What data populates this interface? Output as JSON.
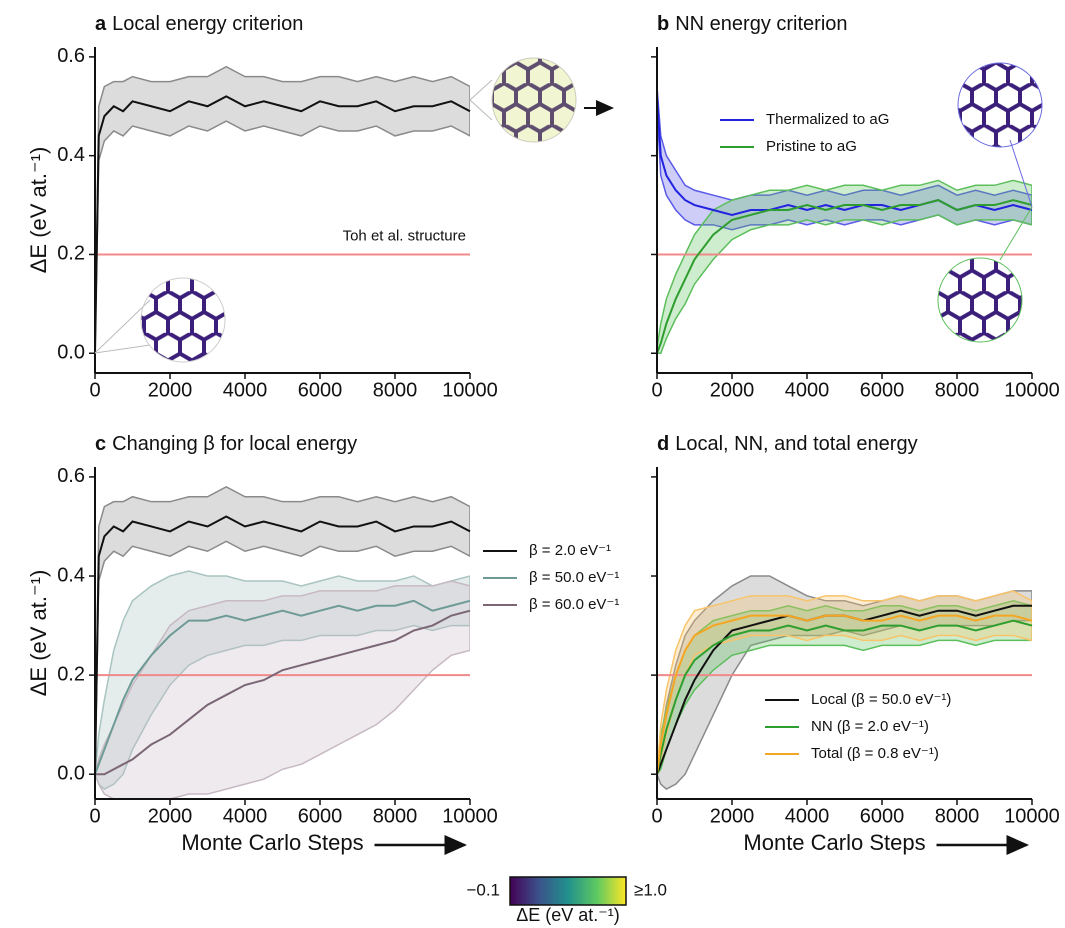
{
  "chart_data": [
    {
      "type": "line",
      "panel_label": "a",
      "title": "Local energy criterion",
      "y_label": "ΔE (eV at.⁻¹)",
      "x": [
        0,
        100,
        250,
        500,
        750,
        1000,
        1500,
        2000,
        2500,
        3000,
        3500,
        4000,
        4500,
        5000,
        5500,
        6000,
        6500,
        7000,
        7500,
        8000,
        8500,
        9000,
        9500,
        10000
      ],
      "series": [
        {
          "color": "#111111",
          "band_color": "#8a8a8a",
          "values": [
            0,
            0.44,
            0.48,
            0.5,
            0.49,
            0.51,
            0.5,
            0.49,
            0.51,
            0.5,
            0.52,
            0.5,
            0.51,
            0.5,
            0.49,
            0.51,
            0.5,
            0.5,
            0.51,
            0.49,
            0.5,
            0.5,
            0.51,
            0.49
          ],
          "lower": [
            0,
            0.39,
            0.43,
            0.45,
            0.44,
            0.46,
            0.45,
            0.44,
            0.46,
            0.45,
            0.47,
            0.45,
            0.46,
            0.45,
            0.44,
            0.46,
            0.45,
            0.45,
            0.46,
            0.44,
            0.45,
            0.45,
            0.46,
            0.44
          ],
          "upper": [
            0,
            0.5,
            0.54,
            0.55,
            0.55,
            0.56,
            0.55,
            0.55,
            0.56,
            0.56,
            0.58,
            0.56,
            0.56,
            0.55,
            0.55,
            0.56,
            0.56,
            0.55,
            0.56,
            0.55,
            0.56,
            0.55,
            0.56,
            0.54
          ]
        }
      ],
      "hline": {
        "value": 0.2,
        "color": "#f08a8a",
        "label": "Toh et al. structure"
      },
      "xlim": [
        0,
        10000
      ],
      "xticks": [
        0,
        2000,
        4000,
        6000,
        8000,
        10000
      ],
      "ylim": [
        -0.04,
        0.62
      ],
      "yticks": [
        {
          "value": 0,
          "label": "0.0"
        },
        0.2,
        0.4,
        0.6
      ],
      "ytick_labels": true
    },
    {
      "type": "line",
      "panel_label": "b",
      "title": "NN energy criterion",
      "legend": "upper center",
      "x": [
        0,
        100,
        250,
        500,
        750,
        1000,
        1500,
        2000,
        2500,
        3000,
        3500,
        4000,
        4500,
        5000,
        5500,
        6000,
        6500,
        7000,
        7500,
        8000,
        8500,
        9000,
        9500,
        10000
      ],
      "series": [
        {
          "name": "Thermalized to aG",
          "color": "#2323e0",
          "band_color": "#5a5ae8",
          "values": [
            0.52,
            0.4,
            0.36,
            0.33,
            0.31,
            0.3,
            0.29,
            0.28,
            0.29,
            0.29,
            0.3,
            0.29,
            0.3,
            0.29,
            0.3,
            0.3,
            0.29,
            0.3,
            0.31,
            0.29,
            0.3,
            0.29,
            0.3,
            0.29
          ],
          "lower": [
            0.5,
            0.36,
            0.32,
            0.29,
            0.27,
            0.26,
            0.26,
            0.25,
            0.26,
            0.26,
            0.27,
            0.26,
            0.27,
            0.26,
            0.27,
            0.27,
            0.26,
            0.27,
            0.28,
            0.26,
            0.27,
            0.26,
            0.27,
            0.26
          ],
          "upper": [
            0.54,
            0.44,
            0.4,
            0.37,
            0.34,
            0.33,
            0.32,
            0.31,
            0.32,
            0.32,
            0.33,
            0.32,
            0.33,
            0.32,
            0.33,
            0.33,
            0.32,
            0.33,
            0.34,
            0.32,
            0.33,
            0.32,
            0.33,
            0.32
          ]
        },
        {
          "name": "Pristine to aG",
          "color": "#2e9e2e",
          "band_color": "#5cbf5c",
          "values": [
            0,
            0.02,
            0.06,
            0.11,
            0.15,
            0.19,
            0.24,
            0.27,
            0.28,
            0.29,
            0.29,
            0.3,
            0.29,
            0.3,
            0.3,
            0.29,
            0.3,
            0.3,
            0.31,
            0.29,
            0.3,
            0.3,
            0.31,
            0.3
          ],
          "lower": [
            0,
            0,
            0.03,
            0.07,
            0.1,
            0.14,
            0.19,
            0.23,
            0.25,
            0.26,
            0.26,
            0.27,
            0.26,
            0.27,
            0.27,
            0.26,
            0.27,
            0.27,
            0.28,
            0.26,
            0.27,
            0.27,
            0.27,
            0.26
          ],
          "upper": [
            0.01,
            0.06,
            0.11,
            0.16,
            0.2,
            0.24,
            0.29,
            0.31,
            0.32,
            0.33,
            0.33,
            0.34,
            0.33,
            0.34,
            0.34,
            0.33,
            0.34,
            0.34,
            0.35,
            0.33,
            0.34,
            0.34,
            0.35,
            0.34
          ]
        }
      ],
      "hline": {
        "value": 0.2,
        "color": "#f08a8a"
      },
      "xlim": [
        0,
        10000
      ],
      "xticks": [
        0,
        2000,
        4000,
        6000,
        8000,
        10000
      ],
      "ylim": [
        -0.04,
        0.62
      ],
      "yticks": [
        0,
        0.2,
        0.4,
        0.6
      ],
      "ytick_labels": false
    },
    {
      "type": "line",
      "panel_label": "c",
      "title": "Changing β for local energy",
      "y_label": "ΔE (eV at.⁻¹)",
      "x_label": "Monte Carlo Steps",
      "legend": "right outside",
      "x": [
        0,
        100,
        250,
        500,
        750,
        1000,
        1500,
        2000,
        2500,
        3000,
        3500,
        4000,
        4500,
        5000,
        5500,
        6000,
        6500,
        7000,
        7500,
        8000,
        8500,
        9000,
        9500,
        10000
      ],
      "series": [
        {
          "name": "β = 2.0 eV⁻¹",
          "color": "#111111",
          "band_color": "#8a8a8a",
          "values": [
            0,
            0.44,
            0.48,
            0.5,
            0.49,
            0.51,
            0.5,
            0.49,
            0.51,
            0.5,
            0.52,
            0.5,
            0.51,
            0.5,
            0.49,
            0.51,
            0.5,
            0.5,
            0.51,
            0.49,
            0.5,
            0.5,
            0.51,
            0.49
          ],
          "lower": [
            0,
            0.39,
            0.43,
            0.45,
            0.44,
            0.46,
            0.45,
            0.44,
            0.46,
            0.45,
            0.47,
            0.45,
            0.46,
            0.45,
            0.44,
            0.46,
            0.45,
            0.45,
            0.46,
            0.44,
            0.45,
            0.45,
            0.46,
            0.44
          ],
          "upper": [
            0,
            0.5,
            0.54,
            0.55,
            0.55,
            0.56,
            0.55,
            0.55,
            0.56,
            0.56,
            0.58,
            0.56,
            0.56,
            0.55,
            0.55,
            0.56,
            0.56,
            0.55,
            0.56,
            0.55,
            0.56,
            0.55,
            0.56,
            0.54
          ]
        },
        {
          "name": "β = 50.0 eV⁻¹",
          "color": "#6e9b97",
          "band_color": "#a9c4c1",
          "values": [
            0,
            0.02,
            0.05,
            0.1,
            0.15,
            0.19,
            0.24,
            0.28,
            0.31,
            0.31,
            0.32,
            0.31,
            0.32,
            0.33,
            0.32,
            0.33,
            0.34,
            0.33,
            0.34,
            0.34,
            0.35,
            0.33,
            0.34,
            0.35
          ],
          "lower": [
            0,
            -0.02,
            -0.03,
            -0.02,
            0,
            0.05,
            0.12,
            0.18,
            0.22,
            0.24,
            0.25,
            0.26,
            0.26,
            0.27,
            0.27,
            0.28,
            0.28,
            0.28,
            0.29,
            0.29,
            0.3,
            0.29,
            0.3,
            0.3
          ],
          "upper": [
            0,
            0.08,
            0.15,
            0.25,
            0.31,
            0.35,
            0.38,
            0.4,
            0.41,
            0.4,
            0.4,
            0.39,
            0.39,
            0.39,
            0.38,
            0.39,
            0.4,
            0.39,
            0.39,
            0.39,
            0.4,
            0.38,
            0.39,
            0.4
          ]
        },
        {
          "name": "β = 60.0 eV⁻¹",
          "color": "#7b6676",
          "band_color": "#c7b9c3",
          "values": [
            0,
            0,
            0,
            0.01,
            0.02,
            0.03,
            0.06,
            0.08,
            0.11,
            0.14,
            0.16,
            0.18,
            0.19,
            0.21,
            0.22,
            0.23,
            0.24,
            0.25,
            0.26,
            0.27,
            0.29,
            0.3,
            0.32,
            0.33
          ],
          "lower": [
            0,
            -0.02,
            -0.04,
            -0.05,
            -0.05,
            -0.05,
            -0.05,
            -0.05,
            -0.04,
            -0.04,
            -0.03,
            -0.02,
            -0.01,
            0.01,
            0.02,
            0.04,
            0.06,
            0.08,
            0.1,
            0.13,
            0.17,
            0.21,
            0.24,
            0.25
          ],
          "upper": [
            0,
            0.03,
            0.06,
            0.1,
            0.14,
            0.18,
            0.24,
            0.3,
            0.33,
            0.34,
            0.35,
            0.35,
            0.35,
            0.36,
            0.36,
            0.37,
            0.37,
            0.37,
            0.37,
            0.38,
            0.38,
            0.38,
            0.39,
            0.38
          ]
        }
      ],
      "hline": {
        "value": 0.2,
        "color": "#f08a8a"
      },
      "xlim": [
        0,
        10000
      ],
      "xticks": [
        0,
        2000,
        4000,
        6000,
        8000,
        10000
      ],
      "ylim": [
        -0.05,
        0.62
      ],
      "yticks": [
        {
          "value": 0,
          "label": "0.0"
        },
        0.2,
        0.4,
        0.6
      ],
      "ytick_labels": true
    },
    {
      "type": "line",
      "panel_label": "d",
      "title": "Local, NN, and total energy",
      "x_label": "Monte Carlo Steps",
      "legend": "lower right",
      "x": [
        0,
        100,
        250,
        500,
        750,
        1000,
        1500,
        2000,
        2500,
        3000,
        3500,
        4000,
        4500,
        5000,
        5500,
        6000,
        6500,
        7000,
        7500,
        8000,
        8500,
        9000,
        9500,
        10000
      ],
      "series": [
        {
          "name": "Local (β = 50.0 eV⁻¹)",
          "color": "#111111",
          "band_color": "#8a8a8a",
          "values": [
            0,
            0.02,
            0.05,
            0.1,
            0.15,
            0.19,
            0.25,
            0.29,
            0.3,
            0.31,
            0.32,
            0.31,
            0.32,
            0.32,
            0.31,
            0.32,
            0.33,
            0.32,
            0.33,
            0.33,
            0.32,
            0.33,
            0.34,
            0.34
          ],
          "lower": [
            0,
            -0.02,
            -0.03,
            -0.02,
            0,
            0.04,
            0.12,
            0.2,
            0.26,
            0.27,
            0.28,
            0.28,
            0.28,
            0.29,
            0.28,
            0.29,
            0.3,
            0.29,
            0.3,
            0.3,
            0.3,
            0.3,
            0.31,
            0.31
          ],
          "upper": [
            0,
            0.07,
            0.14,
            0.22,
            0.28,
            0.31,
            0.35,
            0.38,
            0.4,
            0.4,
            0.38,
            0.36,
            0.35,
            0.35,
            0.34,
            0.35,
            0.36,
            0.35,
            0.36,
            0.36,
            0.35,
            0.36,
            0.37,
            0.37
          ]
        },
        {
          "name": "NN (β = 2.0 eV⁻¹)",
          "color": "#2e9e2e",
          "band_color": "#5cbf5c",
          "values": [
            0,
            0.04,
            0.09,
            0.15,
            0.2,
            0.23,
            0.26,
            0.28,
            0.29,
            0.29,
            0.3,
            0.29,
            0.3,
            0.29,
            0.29,
            0.3,
            0.3,
            0.29,
            0.3,
            0.3,
            0.29,
            0.3,
            0.31,
            0.3
          ],
          "lower": [
            0,
            0.01,
            0.05,
            0.1,
            0.14,
            0.17,
            0.21,
            0.24,
            0.25,
            0.26,
            0.26,
            0.26,
            0.26,
            0.26,
            0.25,
            0.26,
            0.26,
            0.26,
            0.27,
            0.27,
            0.26,
            0.27,
            0.27,
            0.27
          ],
          "upper": [
            0,
            0.08,
            0.13,
            0.2,
            0.25,
            0.28,
            0.31,
            0.32,
            0.33,
            0.33,
            0.34,
            0.33,
            0.34,
            0.33,
            0.33,
            0.34,
            0.34,
            0.33,
            0.34,
            0.34,
            0.33,
            0.34,
            0.35,
            0.34
          ]
        },
        {
          "name": "Total (β = 0.8 eV⁻¹)",
          "color": "#f5a623",
          "band_color": "#f8c46a",
          "values": [
            0,
            0.06,
            0.12,
            0.2,
            0.25,
            0.28,
            0.3,
            0.31,
            0.32,
            0.32,
            0.32,
            0.31,
            0.32,
            0.32,
            0.31,
            0.31,
            0.32,
            0.31,
            0.32,
            0.32,
            0.31,
            0.32,
            0.32,
            0.31
          ],
          "lower": [
            0,
            0.03,
            0.08,
            0.15,
            0.2,
            0.24,
            0.26,
            0.27,
            0.28,
            0.28,
            0.28,
            0.27,
            0.28,
            0.28,
            0.27,
            0.27,
            0.28,
            0.27,
            0.28,
            0.28,
            0.27,
            0.28,
            0.28,
            0.27
          ],
          "upper": [
            0,
            0.1,
            0.17,
            0.25,
            0.3,
            0.33,
            0.34,
            0.35,
            0.36,
            0.36,
            0.36,
            0.35,
            0.36,
            0.36,
            0.35,
            0.35,
            0.36,
            0.35,
            0.36,
            0.36,
            0.35,
            0.36,
            0.37,
            0.35
          ]
        }
      ],
      "hline": {
        "value": 0.2,
        "color": "#f08a8a"
      },
      "xlim": [
        0,
        10000
      ],
      "xticks": [
        0,
        2000,
        4000,
        6000,
        8000,
        10000
      ],
      "ylim": [
        -0.05,
        0.62
      ],
      "yticks": [
        0,
        0.2,
        0.4,
        0.6
      ],
      "ytick_labels": false
    }
  ],
  "colorbar": {
    "min_label": "−0.1",
    "max_label": "≥1.0",
    "label": "ΔE (eV at.⁻¹)"
  }
}
